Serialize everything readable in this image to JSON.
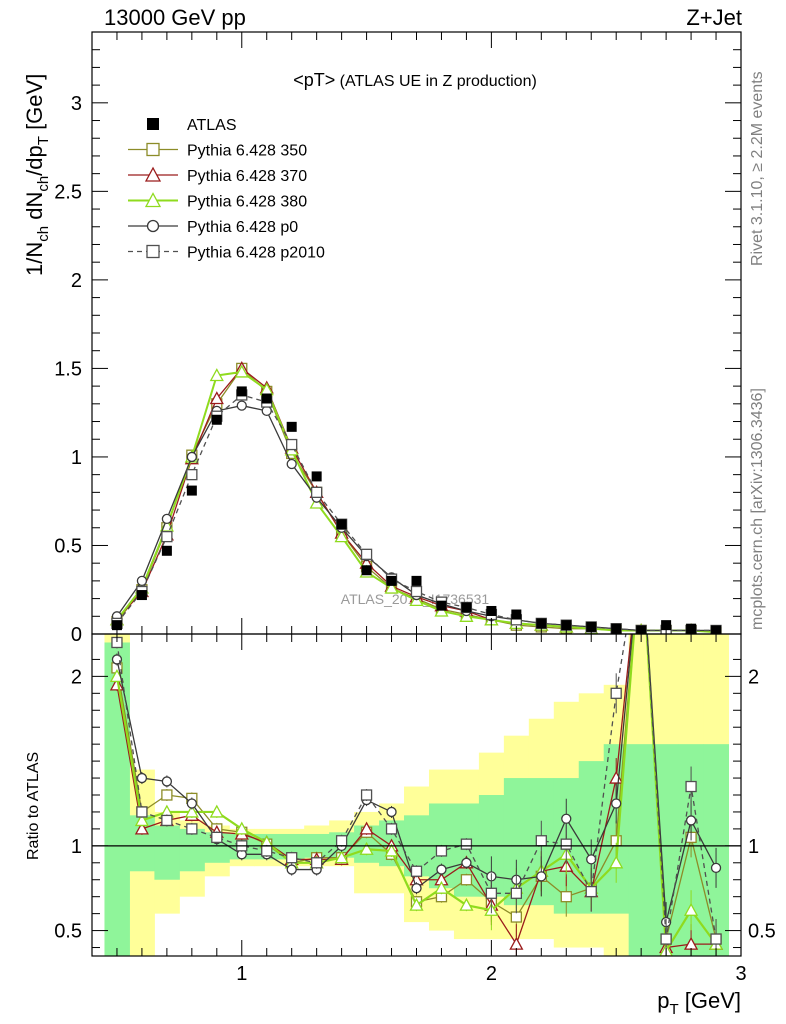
{
  "header": {
    "left": "13000 GeV pp",
    "right": "Z+Jet"
  },
  "side_text": {
    "rivet": "Rivet 3.1.10, ≥ 2.2M events",
    "mcplots": "mcplots.cern.ch [arXiv:1306.3436]"
  },
  "plot_title": {
    "main": "<pT>",
    "sub": " (ATLAS UE in Z production)"
  },
  "watermark": "ATLAS_2019_I1736531",
  "axis_labels": {
    "y_main": "1/N",
    "y_main_sub1": "ch",
    "y_main_mid": " dN",
    "y_main_sub2": "ch",
    "y_main_mid2": "/dp",
    "y_main_sub3": "T",
    "y_main_unit": " [GeV]",
    "y_ratio": "Ratio to ATLAS",
    "x_main": "p",
    "x_sub": "T",
    "x_unit": " [GeV]"
  },
  "colors": {
    "atlas": "#000000",
    "p350": "#8c8c28",
    "p370": "#9b1c1c",
    "p380": "#8fdb1e",
    "p0": "#3a3a3a",
    "p2010": "#505050",
    "band_green": "#8ff59a",
    "band_yellow": "#ffff99"
  },
  "chart_data": {
    "type": "line",
    "xlim": [
      0.4,
      3.0
    ],
    "ylim_main": [
      0,
      3.4
    ],
    "ylim_ratio": [
      0.35,
      2.25
    ],
    "x_ticks": [
      1,
      2,
      3
    ],
    "y_ticks_main": [
      "0",
      "0.5",
      "1",
      "1.5",
      "2",
      "2.5",
      "3"
    ],
    "y_ticks_ratio": [
      "0.5",
      "1",
      "2"
    ],
    "legend_position": "top-left",
    "x": [
      0.5,
      0.6,
      0.7,
      0.8,
      0.9,
      1.0,
      1.1,
      1.2,
      1.3,
      1.4,
      1.5,
      1.6,
      1.7,
      1.8,
      1.9,
      2.0,
      2.1,
      2.2,
      2.3,
      2.4,
      2.5,
      2.6,
      2.7,
      2.8,
      2.9
    ],
    "atlas": {
      "name": "ATLAS",
      "values": [
        0.05,
        0.22,
        0.47,
        0.81,
        1.21,
        1.37,
        1.33,
        1.17,
        0.89,
        0.62,
        0.36,
        0.3,
        0.3,
        0.16,
        0.15,
        0.13,
        0.11,
        0.06,
        0.05,
        0.04,
        0.03,
        0.02,
        0.05,
        0.03,
        0.02
      ]
    },
    "series": [
      {
        "name": "Pythia 6.428 350",
        "key": "p350",
        "marker": "square-open",
        "dash": false,
        "values": [
          0.07,
          0.25,
          0.6,
          1.01,
          1.3,
          1.5,
          1.37,
          1.02,
          0.8,
          0.57,
          0.38,
          0.26,
          0.2,
          0.14,
          0.11,
          0.08,
          0.05,
          0.04,
          0.03,
          0.03,
          0.02,
          0.02,
          0.02,
          0.02,
          0.01
        ],
        "ratio": [
          2.05,
          1.2,
          1.3,
          1.28,
          1.1,
          1.08,
          1.01,
          0.9,
          0.93,
          0.93,
          1.08,
          0.95,
          0.67,
          0.7,
          0.8,
          0.67,
          0.58,
          0.82,
          0.7,
          0.75,
          1.03,
          2.8,
          0.45,
          1.05,
          0.45
        ]
      },
      {
        "name": "Pythia 6.428 370",
        "key": "p370",
        "marker": "triangle-open",
        "dash": false,
        "values": [
          0.08,
          0.24,
          0.56,
          0.99,
          1.33,
          1.5,
          1.39,
          1.05,
          0.8,
          0.57,
          0.4,
          0.27,
          0.21,
          0.16,
          0.13,
          0.08,
          0.06,
          0.05,
          0.04,
          0.03,
          0.02,
          0.02,
          0.02,
          0.02,
          0.01
        ],
        "ratio": [
          1.95,
          1.1,
          1.15,
          1.18,
          1.08,
          1.07,
          1.02,
          0.92,
          0.92,
          0.92,
          1.1,
          1.0,
          0.8,
          0.8,
          0.9,
          0.65,
          0.42,
          0.85,
          0.88,
          0.73,
          1.4,
          2.8,
          0.4,
          0.42,
          0.42
        ]
      },
      {
        "name": "Pythia 6.428 380",
        "key": "p380",
        "marker": "triangle-open",
        "dash": false,
        "values": [
          0.08,
          0.26,
          0.61,
          1.0,
          1.46,
          1.48,
          1.38,
          1.04,
          0.74,
          0.55,
          0.35,
          0.26,
          0.19,
          0.13,
          0.1,
          0.08,
          0.06,
          0.05,
          0.04,
          0.03,
          0.02,
          0.02,
          0.02,
          0.02,
          0.01
        ],
        "ratio": [
          2.0,
          1.15,
          1.2,
          1.2,
          1.2,
          1.1,
          1.02,
          0.9,
          0.9,
          0.93,
          0.98,
          0.97,
          0.65,
          0.75,
          0.65,
          0.62,
          0.75,
          0.85,
          0.95,
          0.75,
          0.9,
          2.8,
          0.38,
          0.62,
          0.42
        ]
      },
      {
        "name": "Pythia 6.428 p0",
        "key": "p0",
        "marker": "circle-open",
        "dash": false,
        "values": [
          0.1,
          0.3,
          0.65,
          1.0,
          1.26,
          1.29,
          1.26,
          0.96,
          0.77,
          0.6,
          0.44,
          0.32,
          0.22,
          0.17,
          0.13,
          0.1,
          0.08,
          0.06,
          0.05,
          0.04,
          0.03,
          0.02,
          0.02,
          0.02,
          0.02
        ],
        "ratio": [
          2.1,
          1.4,
          1.38,
          1.25,
          1.04,
          0.95,
          0.95,
          0.86,
          0.86,
          1.0,
          1.27,
          1.2,
          0.75,
          0.86,
          0.9,
          0.82,
          0.8,
          0.82,
          1.16,
          0.92,
          1.25,
          2.8,
          0.55,
          1.15,
          0.87
        ]
      },
      {
        "name": "Pythia 6.428 p2010",
        "key": "p2010",
        "marker": "square-open",
        "dash": true,
        "values": [
          0.06,
          0.24,
          0.55,
          0.9,
          1.23,
          1.35,
          1.31,
          1.07,
          0.8,
          0.62,
          0.45,
          0.31,
          0.24,
          0.18,
          0.15,
          0.11,
          0.08,
          0.06,
          0.05,
          0.04,
          0.03,
          0.02,
          0.02,
          0.02,
          0.02
        ],
        "ratio": [
          2.2,
          1.2,
          1.15,
          1.1,
          1.05,
          1.0,
          0.97,
          0.93,
          0.9,
          1.03,
          1.3,
          1.1,
          0.85,
          0.97,
          1.01,
          0.72,
          0.72,
          1.03,
          1.01,
          0.73,
          1.9,
          2.8,
          0.45,
          1.35,
          0.45
        ]
      }
    ],
    "bands": {
      "green": {
        "lo": [
          0.3,
          0.85,
          0.8,
          0.85,
          0.9,
          0.92,
          0.92,
          0.92,
          0.93,
          0.93,
          0.9,
          0.88,
          0.82,
          0.75,
          0.7,
          0.7,
          0.65,
          0.65,
          0.6,
          0.6,
          0.6,
          0.3,
          0.3,
          0.3,
          0.3
        ],
        "hi": [
          2.2,
          1.18,
          1.12,
          1.1,
          1.08,
          1.07,
          1.07,
          1.07,
          1.07,
          1.08,
          1.12,
          1.15,
          1.18,
          1.25,
          1.25,
          1.3,
          1.4,
          1.4,
          1.4,
          1.5,
          1.6,
          1.6,
          1.6,
          1.6,
          1.6
        ]
      },
      "yellow": {
        "lo": [
          0.3,
          0.3,
          0.6,
          0.7,
          0.82,
          0.88,
          0.88,
          0.88,
          0.88,
          0.88,
          0.72,
          0.72,
          0.55,
          0.5,
          0.45,
          0.45,
          0.45,
          0.45,
          0.4,
          0.4,
          0.3,
          0.3,
          0.3,
          0.3,
          0.3
        ],
        "hi": [
          2.25,
          1.45,
          1.2,
          1.15,
          1.12,
          1.1,
          1.1,
          1.1,
          1.12,
          1.15,
          1.2,
          1.25,
          1.35,
          1.45,
          1.45,
          1.55,
          1.65,
          1.75,
          1.85,
          1.9,
          1.95,
          2.25,
          2.25,
          2.25,
          2.25
        ]
      }
    }
  }
}
